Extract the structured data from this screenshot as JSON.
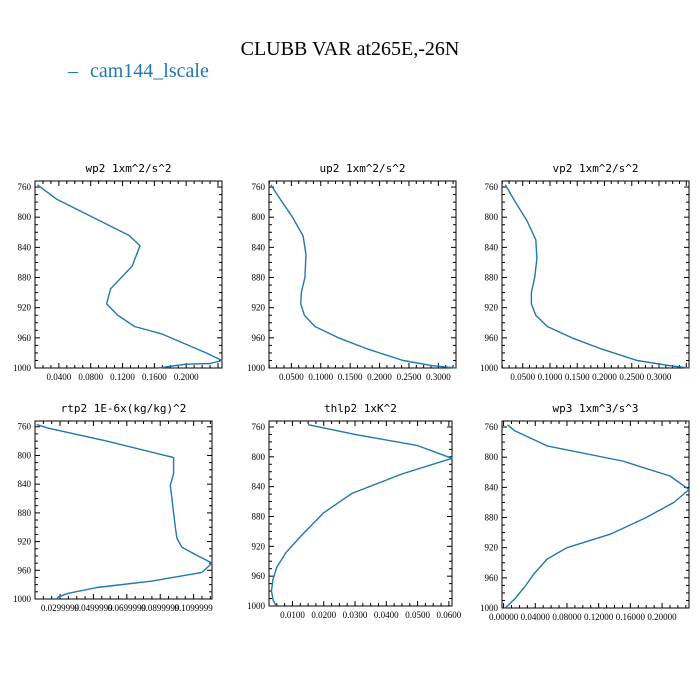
{
  "figure": {
    "title": "CLUBB VAR at265E,-26N",
    "legend": {
      "dash": "–",
      "label": "cam144_lscale",
      "color": "#1f77b4"
    }
  },
  "chart_data": [
    {
      "type": "line",
      "title": "wp2   1xm^2/s^2",
      "xlim": [
        0.01,
        0.245
      ],
      "ylim": [
        1000,
        752
      ],
      "xticks": [
        0.04,
        0.08,
        0.12,
        0.16,
        0.2
      ],
      "xtick_labels": [
        "0.0400",
        "0.0800",
        "0.1200",
        "0.1600",
        "0.2000"
      ],
      "yticks": [
        760,
        800,
        840,
        880,
        920,
        960,
        1000
      ],
      "ytick_labels": [
        "760",
        "800",
        "840",
        "880",
        "920",
        "960",
        "1000"
      ],
      "series": [
        {
          "name": "cam144_lscale",
          "x": [
            0.013,
            0.037,
            0.128,
            0.142,
            0.132,
            0.105,
            0.1,
            0.114,
            0.135,
            0.17,
            0.225,
            0.245,
            0.23,
            0.2,
            0.165
          ],
          "y": [
            757,
            776,
            824,
            838,
            865,
            895,
            915,
            930,
            945,
            955,
            980,
            990,
            994,
            995,
            1000
          ]
        }
      ]
    },
    {
      "type": "line",
      "title": "up2   1xm^2/s^2",
      "xlim": [
        0.012,
        0.33
      ],
      "ylim": [
        1000,
        752
      ],
      "xticks": [
        0.05,
        0.1,
        0.15,
        0.2,
        0.25,
        0.3
      ],
      "xtick_labels": [
        "0.0500",
        "0.1000",
        "0.1500",
        "0.2000",
        "0.2500",
        "0.3000"
      ],
      "yticks": [
        760,
        800,
        840,
        880,
        920,
        960,
        1000
      ],
      "ytick_labels": [
        "760",
        "800",
        "840",
        "880",
        "920",
        "960",
        "1000"
      ],
      "series": [
        {
          "name": "cam144_lscale",
          "x": [
            0.015,
            0.03,
            0.052,
            0.07,
            0.075,
            0.073,
            0.067,
            0.066,
            0.072,
            0.09,
            0.13,
            0.18,
            0.24,
            0.29,
            0.33
          ],
          "y": [
            757,
            775,
            800,
            825,
            850,
            880,
            900,
            915,
            930,
            945,
            960,
            975,
            990,
            997,
            1000
          ]
        }
      ]
    },
    {
      "type": "line",
      "title": "vp2   1xm^2/s^2",
      "xlim": [
        0.012,
        0.355
      ],
      "ylim": [
        1000,
        752
      ],
      "xticks": [
        0.05,
        0.1,
        0.15,
        0.2,
        0.25,
        0.3
      ],
      "xtick_labels": [
        "0.0500",
        "0.1000",
        "0.1500",
        "0.2000",
        "0.2500",
        "0.3000"
      ],
      "yticks": [
        760,
        800,
        840,
        880,
        920,
        960,
        1000
      ],
      "ytick_labels": [
        "760",
        "800",
        "840",
        "880",
        "920",
        "960",
        "1000"
      ],
      "series": [
        {
          "name": "cam144_lscale",
          "x": [
            0.018,
            0.035,
            0.058,
            0.074,
            0.076,
            0.072,
            0.066,
            0.066,
            0.074,
            0.095,
            0.14,
            0.195,
            0.26,
            0.32,
            0.355
          ],
          "y": [
            757,
            778,
            805,
            830,
            855,
            880,
            900,
            915,
            930,
            945,
            960,
            975,
            990,
            997,
            1000
          ]
        }
      ]
    },
    {
      "type": "line",
      "title": "rtp2   1E-6x(kg/kg)^2",
      "xlim": [
        0.015,
        0.121
      ],
      "ylim": [
        1000,
        752
      ],
      "xticks": [
        0.03,
        0.05,
        0.07,
        0.09,
        0.11
      ],
      "xtick_labels": [
        "0.0299999",
        "0.0499999",
        "0.0699999",
        "0.0899999",
        "0.1099999"
      ],
      "yticks": [
        760,
        800,
        840,
        880,
        920,
        960,
        1000
      ],
      "ytick_labels": [
        "760",
        "800",
        "840",
        "880",
        "920",
        "960",
        "1000"
      ],
      "series": [
        {
          "name": "cam144_lscale",
          "x": [
            0.016,
            0.023,
            0.058,
            0.098,
            0.098,
            0.096,
            0.097,
            0.098,
            0.099,
            0.1,
            0.103,
            0.111,
            0.121,
            0.115,
            0.085,
            0.052,
            0.035,
            0.029,
            0.028
          ],
          "y": [
            757,
            762,
            780,
            803,
            825,
            842,
            860,
            880,
            900,
            915,
            928,
            938,
            950,
            963,
            975,
            984,
            992,
            997,
            1000
          ]
        }
      ]
    },
    {
      "type": "line",
      "title": "thlp2   1xK^2",
      "xlim": [
        0.0025,
        0.061
      ],
      "ylim": [
        1000,
        752
      ],
      "xticks": [
        0.01,
        0.02,
        0.03,
        0.04,
        0.05,
        0.06
      ],
      "xtick_labels": [
        "0.0100",
        "0.0200",
        "0.0300",
        "0.0400",
        "0.0500",
        "0.0600"
      ],
      "yticks": [
        760,
        800,
        840,
        880,
        920,
        960,
        1000
      ],
      "ytick_labels": [
        "760",
        "800",
        "840",
        "880",
        "920",
        "960",
        "1000"
      ],
      "series": [
        {
          "name": "cam144_lscale",
          "x": [
            0.015,
            0.03,
            0.05,
            0.061,
            0.045,
            0.029,
            0.02,
            0.013,
            0.008,
            0.005,
            0.0037,
            0.0033,
            0.0038,
            0.0048
          ],
          "y": [
            757,
            770,
            785,
            802,
            823,
            849,
            875,
            905,
            928,
            948,
            965,
            980,
            992,
            1000
          ]
        }
      ]
    },
    {
      "type": "line",
      "title": "wp3   1xm^3/s^3",
      "xlim": [
        -0.002,
        0.234
      ],
      "ylim": [
        1000,
        752
      ],
      "xticks": [
        0.0,
        0.04,
        0.08,
        0.12,
        0.16,
        0.2
      ],
      "xtick_labels": [
        "0.00000",
        "0.04000",
        "0.08000",
        "0.12000",
        "0.16000",
        "0.20000"
      ],
      "yticks": [
        760,
        800,
        840,
        880,
        920,
        960,
        1000
      ],
      "ytick_labels": [
        "760",
        "800",
        "840",
        "880",
        "920",
        "960",
        "1000"
      ],
      "series": [
        {
          "name": "cam144_lscale",
          "x": [
            0.005,
            0.014,
            0.055,
            0.15,
            0.21,
            0.234,
            0.215,
            0.18,
            0.135,
            0.08,
            0.055,
            0.038,
            0.028,
            0.014,
            0.002
          ],
          "y": [
            757,
            765,
            785,
            805,
            825,
            843,
            860,
            880,
            902,
            920,
            935,
            955,
            970,
            988,
            1000
          ]
        }
      ]
    }
  ]
}
